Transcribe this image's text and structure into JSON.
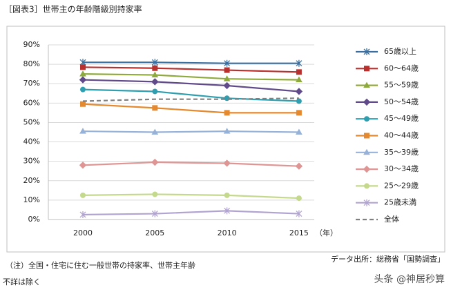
{
  "chart_data": {
    "type": "line",
    "title": "［図表3］世帯主の年齢階級別持家率",
    "x_unit": "（年）",
    "categories": [
      "2000",
      "2005",
      "2010",
      "2015"
    ],
    "ylim": [
      0,
      90
    ],
    "yticks": [
      {
        "value": 0,
        "label": "0%"
      },
      {
        "value": 10,
        "label": "10%"
      },
      {
        "value": 20,
        "label": "20%"
      },
      {
        "value": 30,
        "label": "30%"
      },
      {
        "value": 40,
        "label": "40%"
      },
      {
        "value": 50,
        "label": "50%"
      },
      {
        "value": 60,
        "label": "60%"
      },
      {
        "value": 70,
        "label": "70%"
      },
      {
        "value": 80,
        "label": "80%"
      },
      {
        "value": 90,
        "label": "90%"
      }
    ],
    "grid": true,
    "legend": "right",
    "series": [
      {
        "name": "65歳以上",
        "color": "#3a6e9e",
        "marker": "star",
        "values": [
          81,
          81,
          80.5,
          80.5
        ]
      },
      {
        "name": "60～64歳",
        "color": "#b8312f",
        "marker": "square",
        "values": [
          78.5,
          78,
          77,
          76
        ]
      },
      {
        "name": "55～59歳",
        "color": "#8faa3c",
        "marker": "triangle",
        "values": [
          75,
          74.5,
          72.5,
          72
        ]
      },
      {
        "name": "50～54歳",
        "color": "#604a8a",
        "marker": "diamond",
        "values": [
          72,
          71,
          69,
          66
        ]
      },
      {
        "name": "45～49歳",
        "color": "#2f9fb0",
        "marker": "circle",
        "values": [
          67,
          66,
          62.5,
          61
        ]
      },
      {
        "name": "40～44歳",
        "color": "#e5892e",
        "marker": "square",
        "values": [
          59.5,
          57.5,
          55,
          55
        ]
      },
      {
        "name": "35～39歳",
        "color": "#97b2d8",
        "marker": "triangle",
        "values": [
          45.5,
          45,
          45.5,
          45
        ]
      },
      {
        "name": "30～34歳",
        "color": "#df9594",
        "marker": "diamond",
        "values": [
          28,
          29.5,
          29,
          27.5
        ]
      },
      {
        "name": "25～29歳",
        "color": "#c4d98c",
        "marker": "circle",
        "values": [
          12.5,
          13,
          12.5,
          11
        ]
      },
      {
        "name": "25歳未満",
        "color": "#b2a4d1",
        "marker": "star",
        "values": [
          2.5,
          3,
          4.5,
          3
        ]
      },
      {
        "name": "全体",
        "color": "#7f7f7f",
        "marker": "none",
        "dash": true,
        "values": [
          61,
          62,
          62,
          62.5
        ]
      }
    ],
    "notes": [
      "（注）全国・住宅に住む一般世帯の持家率、世帯主年齢",
      "不詳は除く"
    ],
    "source": "データ出所：総務省「国勢調査」",
    "watermark": "头条 @神居秒算"
  }
}
